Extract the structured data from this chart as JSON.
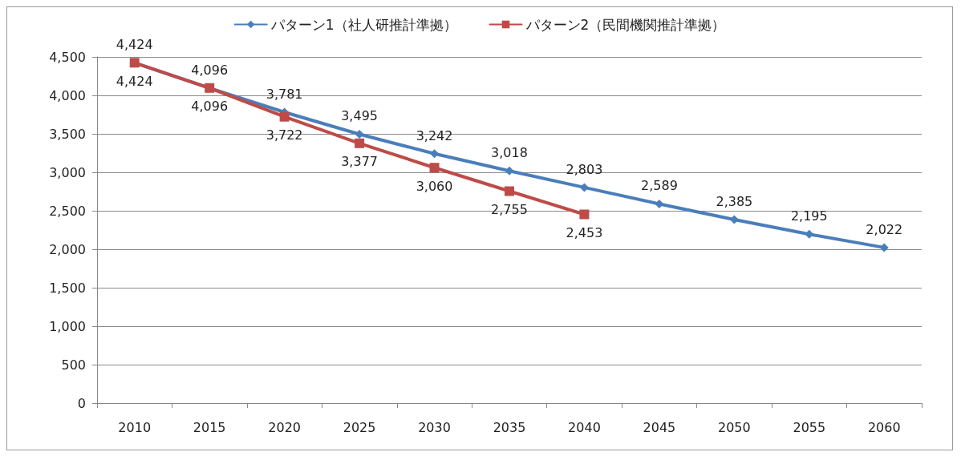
{
  "chart_data": {
    "type": "line",
    "categories": [
      "2010",
      "2015",
      "2020",
      "2025",
      "2030",
      "2035",
      "2040",
      "2045",
      "2050",
      "2055",
      "2060"
    ],
    "series": [
      {
        "name": "パターン1（社人研推計準拠）",
        "color": "#4a7ebb",
        "marker": "diamond",
        "values": [
          4424,
          4096,
          3781,
          3495,
          3242,
          3018,
          2803,
          2589,
          2385,
          2195,
          2022
        ],
        "value_labels": [
          "4,424",
          "4,096",
          "3,781",
          "3,495",
          "3,242",
          "3,018",
          "2,803",
          "2,589",
          "2,385",
          "2,195",
          "2,022"
        ]
      },
      {
        "name": "パターン2（民間機関推計準拠）",
        "color": "#be4b48",
        "marker": "square",
        "values": [
          4424,
          4096,
          3722,
          3377,
          3060,
          2755,
          2453,
          null,
          null,
          null,
          null
        ],
        "value_labels": [
          "4,424",
          "4,096",
          "3,722",
          "3,377",
          "3,060",
          "2,755",
          "2,453",
          null,
          null,
          null,
          null
        ]
      }
    ],
    "ylim": [
      0,
      4500
    ],
    "yticks": [
      0,
      500,
      {
        "value": 1000,
        "label": "1,000"
      },
      {
        "value": 1500,
        "label": "1,500"
      },
      {
        "value": 2000,
        "label": "2,000"
      },
      {
        "value": 2500,
        "label": "2,500"
      },
      {
        "value": 3000,
        "label": "3,000"
      },
      {
        "value": 3500,
        "label": "3,500"
      },
      {
        "value": 4000,
        "label": "4,000"
      },
      {
        "value": 4500,
        "label": "4,500"
      }
    ],
    "grid": "y",
    "legend": "top"
  }
}
